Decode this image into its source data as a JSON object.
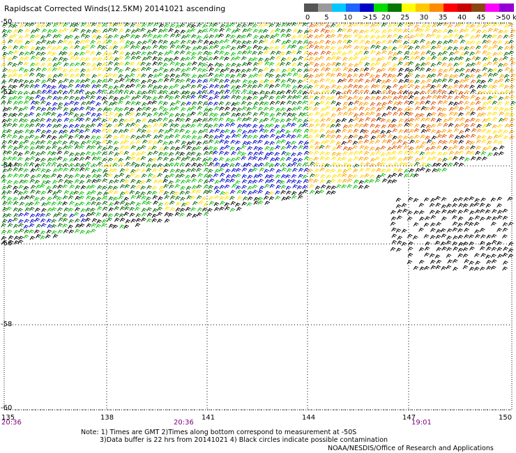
{
  "title": "Rapidscat Corrected Winds(12.5KM) 20141021 ascending",
  "legend": {
    "colors": [
      "#555555",
      "#9a9a9a",
      "#00c8ff",
      "#1e64ff",
      "#0000c8",
      "#00dc00",
      "#007800",
      "#ffff00",
      "#ffc800",
      "#ff8c00",
      "#ff0000",
      "#c80000",
      "#8b4513",
      "#ff00ff",
      "#9400d3"
    ],
    "labels": [
      {
        "text": "0",
        "pos": 0
      },
      {
        "text": "5",
        "pos": 1
      },
      {
        "text": "10",
        "pos": 2
      },
      {
        "text": ">15",
        "pos": 3
      },
      {
        "text": "20",
        "pos": 4
      },
      {
        "text": "25",
        "pos": 5
      },
      {
        "text": "30",
        "pos": 6
      },
      {
        "text": "35",
        "pos": 7
      },
      {
        "text": "40",
        "pos": 8
      },
      {
        "text": "45",
        "pos": 9
      },
      {
        "text": ">50 knots",
        "pos": 10
      }
    ]
  },
  "axes": {
    "lat_labels": [
      "-50",
      "-52",
      "-54",
      "-56",
      "-58",
      "-60"
    ],
    "lon_labels": [
      "135",
      "138",
      "141",
      "144",
      "147",
      "150"
    ],
    "time_labels": [
      "20:36",
      "20:36",
      "19:01"
    ]
  },
  "notes": {
    "line1": "Note: 1) Times are GMT 2)Times along bottom correspond to measurement at -50S",
    "line2": "3)Data buffer is 22 hrs from 20141021 4) Black circles indicate possible contamination"
  },
  "credit": "NOAA/NESDIS/Office of Research and Applications"
}
